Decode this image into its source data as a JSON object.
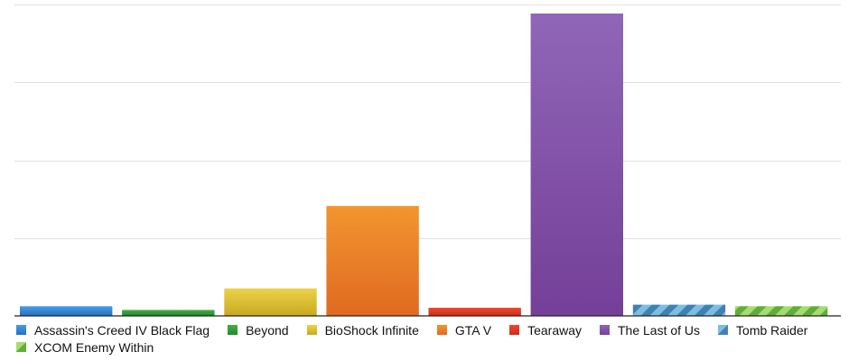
{
  "chart_data": {
    "type": "bar",
    "title": "",
    "xlabel": "",
    "ylabel": "",
    "ylim": [
      0,
      100
    ],
    "grid": true,
    "legend_position": "bottom",
    "categories": [
      "Assassin's Creed IV Black Flag",
      "Beyond",
      "BioShock Infinite",
      "GTA V",
      "Tearaway",
      "The Last of Us",
      "Tomb Raider",
      "XCOM Enemy Within"
    ],
    "values": [
      3.1,
      1.9,
      8.8,
      35.3,
      2.6,
      97.1,
      3.6,
      3.1
    ],
    "colors": [
      {
        "top": "#4a9ee6",
        "bottom": "#1e6fc4",
        "pattern": "solid"
      },
      {
        "top": "#45b045",
        "bottom": "#1f8a2a",
        "pattern": "solid"
      },
      {
        "top": "#ecd24a",
        "bottom": "#c9a91e",
        "pattern": "solid"
      },
      {
        "top": "#f2952f",
        "bottom": "#e06a21",
        "pattern": "solid"
      },
      {
        "top": "#ef4a2f",
        "bottom": "#cf2a14",
        "pattern": "solid"
      },
      {
        "top": "#9066b8",
        "bottom": "#743f98",
        "pattern": "solid"
      },
      {
        "top": "#7fbde0",
        "bottom": "#3e82b2",
        "pattern": "striped"
      },
      {
        "top": "#a4dc74",
        "bottom": "#5fae38",
        "pattern": "striped"
      }
    ]
  }
}
